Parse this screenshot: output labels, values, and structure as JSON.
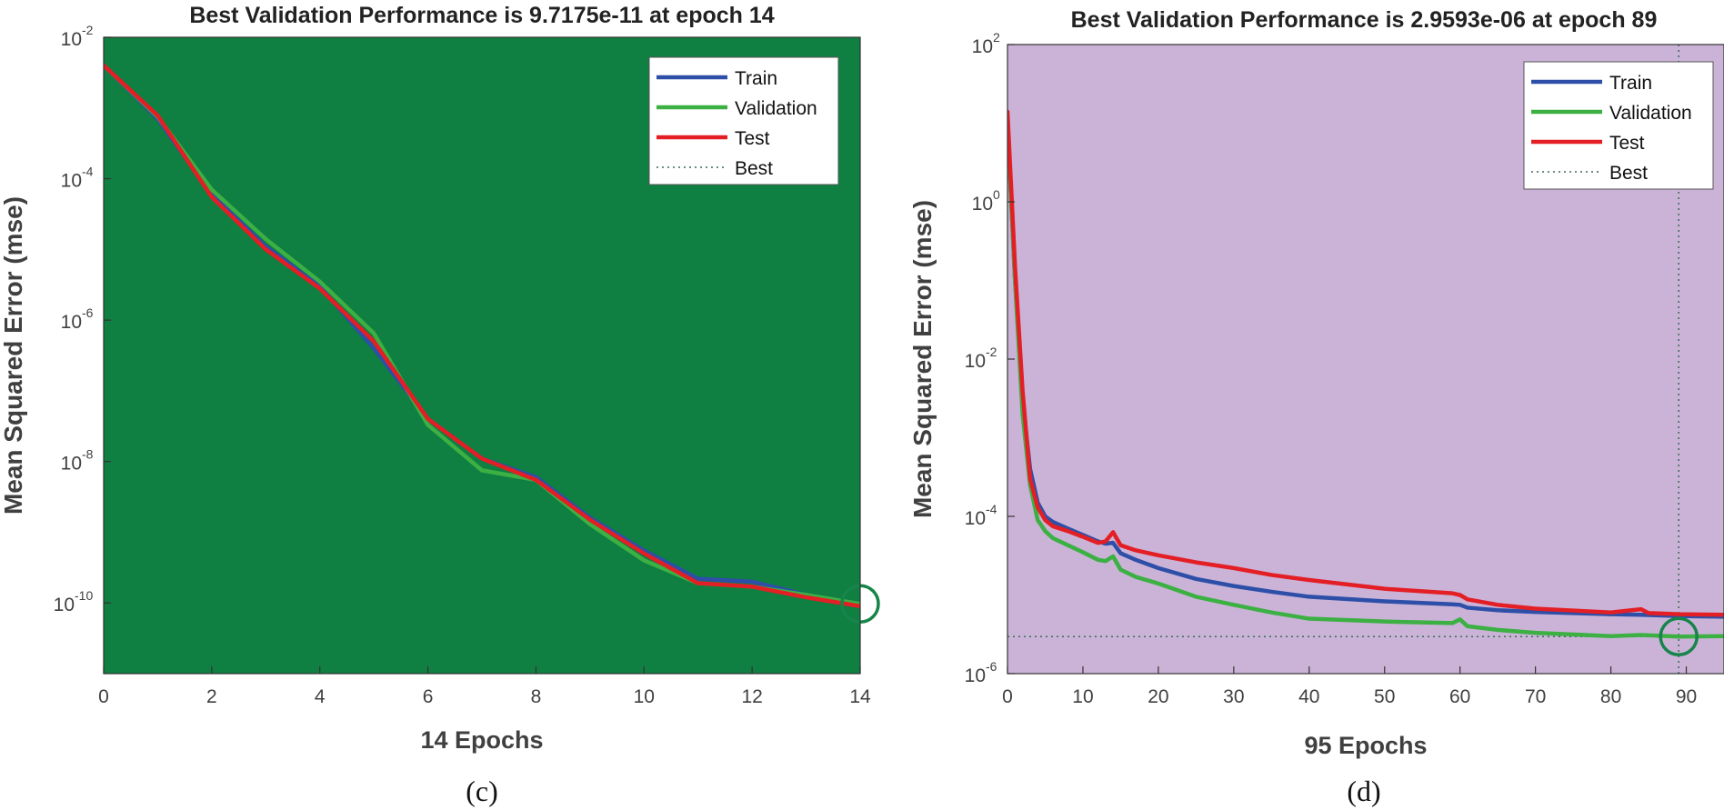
{
  "colors": {
    "train": "#2d4fa8",
    "validation": "#3cb043",
    "test": "#e31e24",
    "best_line": "#1f7a4a",
    "best_circle": "#17844a",
    "bg_c": "#0f7f42",
    "bg_d": "#cbb3d8",
    "axis": "#333333"
  },
  "legend_labels": [
    "Train",
    "Validation",
    "Test",
    "Best"
  ],
  "chart_data": [
    {
      "type": "line",
      "id": "c",
      "panel_label": "(c)",
      "title": "Best Validation Performance is 9.7175e-11 at epoch 14",
      "xlabel": "14 Epochs",
      "ylabel": "Mean Squared Error  (mse)",
      "yscale": "log",
      "xlim": [
        0,
        14
      ],
      "ylim_exp": [
        -11,
        -2
      ],
      "xticks": [
        0,
        2,
        4,
        6,
        8,
        10,
        12,
        14
      ],
      "yticks_exp": [
        -10,
        -8,
        -6,
        -4,
        -2
      ],
      "ytick_labels": [
        "10",
        "10",
        "10",
        "10",
        "10"
      ],
      "ytick_exponents": [
        "-10",
        "-8",
        "-6",
        "-4",
        "-2"
      ],
      "best_epoch": 14,
      "best_value": 9.7175e-11,
      "show_best_vertical": false,
      "show_best_horizontal": false,
      "series": [
        {
          "name": "Train",
          "x": [
            0,
            1,
            2,
            3,
            4,
            5,
            6,
            7,
            8,
            9,
            10,
            11,
            12,
            13,
            14
          ],
          "values": [
            0.004,
            0.0007,
            6e-05,
            1.1e-05,
            3e-06,
            4e-07,
            4e-08,
            1.1e-08,
            6e-09,
            1.6e-09,
            5.5e-10,
            2.2e-10,
            2e-10,
            1.3e-10,
            9.7e-11
          ]
        },
        {
          "name": "Validation",
          "x": [
            0,
            1,
            2,
            3,
            4,
            5,
            6,
            7,
            8,
            9,
            10,
            11,
            12,
            13,
            14
          ],
          "values": [
            0.004,
            0.00075,
            7e-05,
            1.4e-05,
            3.5e-06,
            6.5e-07,
            3.3e-08,
            7.5e-09,
            5.5e-09,
            1.3e-09,
            4e-10,
            1.9e-10,
            1.7e-10,
            1.3e-10,
            9.7e-11
          ]
        },
        {
          "name": "Test",
          "x": [
            0,
            1,
            2,
            3,
            4,
            5,
            6,
            7,
            8,
            9,
            10,
            11,
            12,
            13,
            14
          ],
          "values": [
            0.004,
            0.00078,
            5.5e-05,
            1e-05,
            2.8e-06,
            5e-07,
            4e-08,
            1.1e-08,
            5.5e-09,
            1.5e-09,
            5e-10,
            1.9e-10,
            1.7e-10,
            1.2e-10,
            9e-11
          ]
        }
      ]
    },
    {
      "type": "line",
      "id": "d",
      "panel_label": "(d)",
      "title": "Best Validation Performance is 2.9593e-06 at epoch 89",
      "xlabel": "95 Epochs",
      "ylabel": "Mean Squared Error  (mse)",
      "yscale": "log",
      "xlim": [
        0,
        95
      ],
      "ylim_exp": [
        -6,
        2
      ],
      "xticks": [
        0,
        10,
        20,
        30,
        40,
        50,
        60,
        70,
        80,
        90
      ],
      "yticks_exp": [
        -6,
        -4,
        -2,
        0,
        2
      ],
      "ytick_labels": [
        "10",
        "10",
        "10",
        "10",
        "10"
      ],
      "ytick_exponents": [
        "-6",
        "-4",
        "-2",
        "0",
        "2"
      ],
      "best_epoch": 89,
      "best_value": 2.9593e-06,
      "show_best_vertical": true,
      "show_best_horizontal": true,
      "series": [
        {
          "name": "Train",
          "x": [
            0,
            1,
            2,
            3,
            4,
            5,
            6,
            8,
            10,
            12,
            13,
            14,
            15,
            17,
            20,
            25,
            30,
            35,
            40,
            50,
            59,
            60,
            61,
            65,
            70,
            80,
            84,
            89,
            95
          ],
          "values": [
            10,
            0.1,
            0.003,
            0.0004,
            0.00015,
            0.0001,
            8.5e-05,
            7e-05,
            5.8e-05,
            4.8e-05,
            4.5e-05,
            4.6e-05,
            3.4e-05,
            2.8e-05,
            2.2e-05,
            1.6e-05,
            1.3e-05,
            1.1e-05,
            9.5e-06,
            8.3e-06,
            7.6e-06,
            7.5e-06,
            6.9e-06,
            6.4e-06,
            6.1e-06,
            5.7e-06,
            5.6e-06,
            5.4e-06,
            5.3e-06
          ]
        },
        {
          "name": "Validation",
          "x": [
            0,
            1,
            2,
            3,
            4,
            5,
            6,
            8,
            10,
            12,
            13,
            14,
            15,
            17,
            20,
            25,
            30,
            35,
            40,
            50,
            59,
            60,
            61,
            65,
            70,
            80,
            84,
            89,
            95
          ],
          "values": [
            10,
            0.1,
            0.002,
            0.00025,
            9e-05,
            6.5e-05,
            5.3e-05,
            4.3e-05,
            3.5e-05,
            2.8e-05,
            2.7e-05,
            3.1e-05,
            2.1e-05,
            1.7e-05,
            1.4e-05,
            9.5e-06,
            7.5e-06,
            6e-06,
            5e-06,
            4.6e-06,
            4.4e-06,
            4.9e-06,
            4e-06,
            3.6e-06,
            3.3e-06,
            3e-06,
            3.1e-06,
            2.96e-06,
            3e-06
          ]
        },
        {
          "name": "Test",
          "x": [
            0,
            1,
            2,
            3,
            4,
            5,
            6,
            8,
            10,
            12,
            13,
            14,
            15,
            17,
            20,
            25,
            30,
            35,
            40,
            50,
            59,
            60,
            61,
            65,
            70,
            80,
            84,
            85,
            89,
            95
          ],
          "values": [
            14,
            0.15,
            0.004,
            0.0003,
            0.00013,
            9e-05,
            7.5e-05,
            6.5e-05,
            5.5e-05,
            4.6e-05,
            4.8e-05,
            6.3e-05,
            4.3e-05,
            3.7e-05,
            3.2e-05,
            2.6e-05,
            2.2e-05,
            1.8e-05,
            1.55e-05,
            1.2e-05,
            1.05e-05,
            1e-05,
            8.8e-06,
            7.5e-06,
            6.7e-06,
            6e-06,
            6.6e-06,
            5.9e-06,
            5.7e-06,
            5.6e-06
          ]
        }
      ]
    }
  ]
}
